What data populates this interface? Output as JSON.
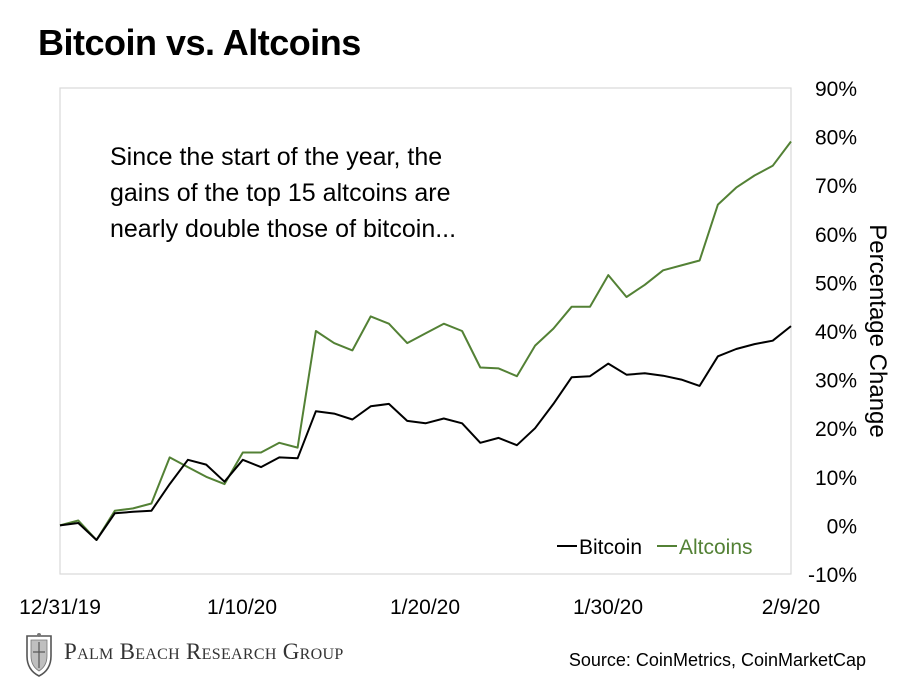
{
  "title": "Bitcoin vs. Altcoins",
  "annotation": [
    "Since the start of the year, the",
    "gains of the top 15 altcoins are",
    "nearly double those of bitcoin..."
  ],
  "source": "Source: CoinMetrics, CoinMarketCap",
  "brand": "Palm Beach Research Group",
  "colors": {
    "bitcoin": "#000000",
    "altcoins": "#538135",
    "frame": "#d9d9d9"
  },
  "chart_data": {
    "type": "line",
    "ylabel": "Percentage Change",
    "y_axis_side": "right",
    "ylim": [
      -10,
      90
    ],
    "yticks": [
      -10,
      0,
      10,
      20,
      30,
      40,
      50,
      60,
      70,
      80,
      90
    ],
    "ytick_labels": [
      "-10%",
      "0%",
      "10%",
      "20%",
      "30%",
      "40%",
      "50%",
      "60%",
      "70%",
      "80%",
      "90%"
    ],
    "x_start": "12/31/19",
    "x_end": "2/9/20",
    "xtick_labels": [
      "12/31/19",
      "1/10/20",
      "1/20/20",
      "1/30/20",
      "2/9/20"
    ],
    "legend": "bottom-right, inside plot",
    "grid": false,
    "series": [
      {
        "name": "Bitcoin",
        "values": [
          0,
          0.5,
          -3,
          2.5,
          2.8,
          3,
          8.5,
          13.5,
          12.5,
          9,
          13.5,
          12,
          14,
          13.8,
          23.5,
          23,
          21.8,
          24.5,
          25,
          21.5,
          21,
          22,
          21,
          17,
          18,
          16.5,
          20,
          25,
          30.5,
          30.7,
          33.3,
          31,
          31.3,
          30.8,
          30,
          28.7,
          34.8,
          36.3,
          37.3,
          38,
          41
        ]
      },
      {
        "name": "Altcoins",
        "values": [
          0,
          1,
          -3,
          3,
          3.5,
          4.5,
          14,
          12,
          10,
          8.5,
          15,
          15,
          17,
          16,
          40,
          37.5,
          36,
          43,
          41.5,
          37.5,
          39.5,
          41.5,
          40,
          32.5,
          32.3,
          30.7,
          37,
          40.5,
          45,
          45,
          51.5,
          47,
          49.5,
          52.5,
          53.5,
          54.5,
          66,
          69.5,
          72,
          74,
          79
        ]
      }
    ]
  }
}
